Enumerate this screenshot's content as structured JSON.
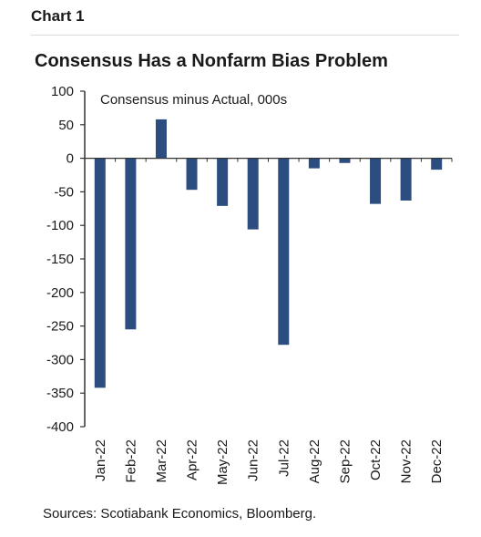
{
  "header": {
    "chart_label": "Chart 1"
  },
  "chart_data": {
    "type": "bar",
    "title": "Consensus Has a Nonfarm Bias Problem",
    "subtitle": "Consensus minus Actual, 000s",
    "categories": [
      "Jan-22",
      "Feb-22",
      "Mar-22",
      "Apr-22",
      "May-22",
      "Jun-22",
      "Jul-22",
      "Aug-22",
      "Sep-22",
      "Oct-22",
      "Nov-22",
      "Dec-22"
    ],
    "values": [
      -342,
      -255,
      58,
      -47,
      -71,
      -106,
      -278,
      -15,
      -7,
      -68,
      -63,
      -17
    ],
    "ylim": [
      -400,
      100
    ],
    "yticks": [
      100,
      50,
      0,
      -50,
      -100,
      -150,
      -200,
      -250,
      -300,
      -350,
      -400
    ],
    "ytick_labels": [
      "100",
      "50",
      "0",
      "-50",
      "-100",
      "-150",
      "-200",
      "-250",
      "-300",
      "-350",
      "-400"
    ],
    "bar_color": "#2b4d7f",
    "grid": false,
    "legend": "none"
  },
  "footer": {
    "source": "Sources: Scotiabank Economics, Bloomberg."
  }
}
